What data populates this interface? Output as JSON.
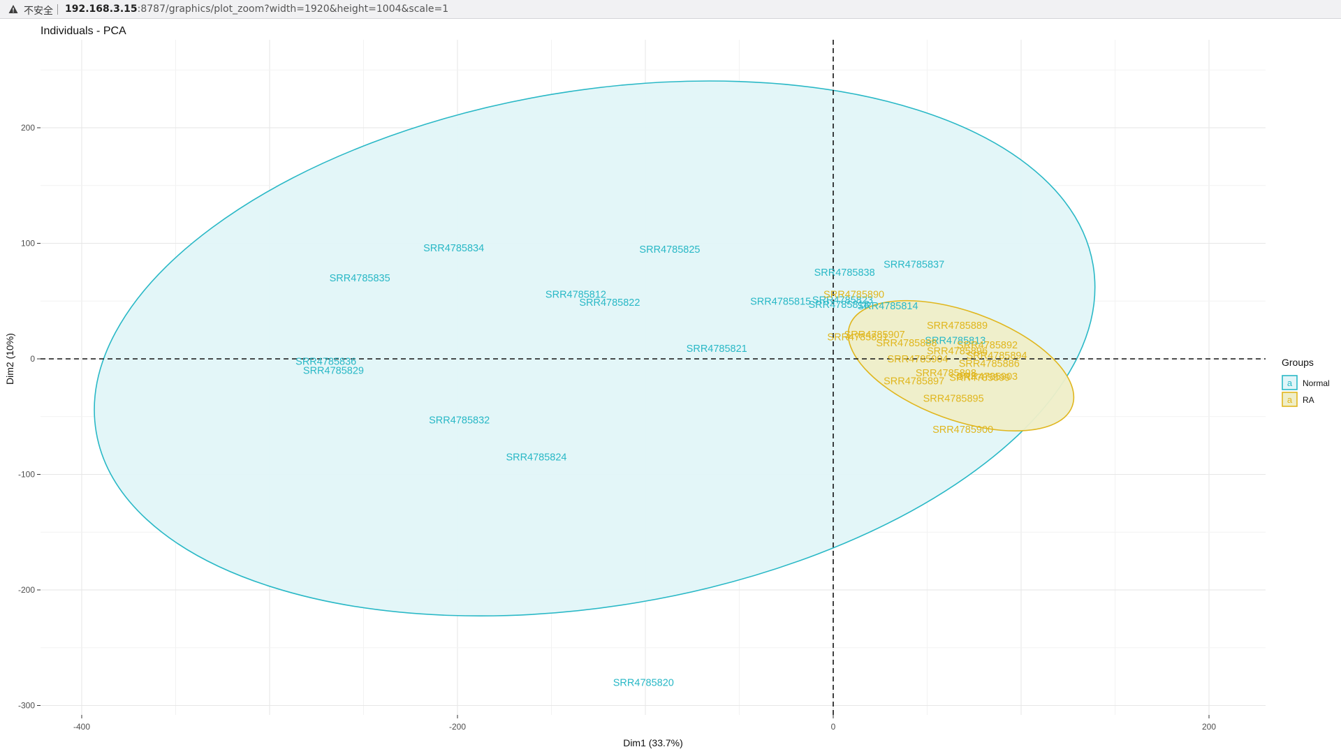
{
  "browser": {
    "security_label": "不安全",
    "url_host": "192.168.3.15",
    "url_rest": ":8787/graphics/plot_zoom?width=1920&height=1004&scale=1"
  },
  "chart_data": {
    "type": "scatter",
    "title": "Individuals - PCA",
    "xlabel": "Dim1 (33.7%)",
    "ylabel": "Dim2 (10%)",
    "xlim": [
      -420,
      230
    ],
    "ylim": [
      -305,
      275
    ],
    "xticks": [
      -400,
      -200,
      0,
      200
    ],
    "yticks": [
      -300,
      -200,
      -100,
      0,
      100,
      200
    ],
    "x_tick_labels": [
      "-400",
      "-200",
      "0",
      "200"
    ],
    "y_tick_labels": [
      "-300",
      "-200",
      "-100",
      "0",
      "100",
      "200"
    ],
    "grid": true,
    "reference_lines": {
      "x": 0,
      "y": 0,
      "style": "dashed"
    },
    "legend": {
      "title": "Groups",
      "position": "right",
      "symbol": "a"
    },
    "series": [
      {
        "name": "Normal",
        "color": "#29b8c6",
        "fill": "#e2f5f8",
        "points": [
          {
            "label": "SRR4785834",
            "x": -202,
            "y": 96
          },
          {
            "label": "SRR4785825",
            "x": -87,
            "y": 95
          },
          {
            "label": "SRR4785835",
            "x": -252,
            "y": 70
          },
          {
            "label": "SRR4785838",
            "x": 6,
            "y": 75
          },
          {
            "label": "SRR4785837",
            "x": 43,
            "y": 82
          },
          {
            "label": "SRR4785812",
            "x": -137,
            "y": 56
          },
          {
            "label": "SRR4785822",
            "x": -119,
            "y": 49
          },
          {
            "label": "SRR4785815",
            "x": -28,
            "y": 50
          },
          {
            "label": "SRR4785823",
            "x": 5,
            "y": 51
          },
          {
            "label": "SRR4785818",
            "x": 3,
            "y": 47
          },
          {
            "label": "SRR4785814",
            "x": 29,
            "y": 46
          },
          {
            "label": "SRR4785821",
            "x": -62,
            "y": 9
          },
          {
            "label": "SRR4785813",
            "x": 65,
            "y": 16
          },
          {
            "label": "SRR4785836",
            "x": -270,
            "y": -2
          },
          {
            "label": "SRR4785829",
            "x": -266,
            "y": -10
          },
          {
            "label": "SRR4785832",
            "x": -199,
            "y": -53
          },
          {
            "label": "SRR4785824",
            "x": -158,
            "y": -85
          },
          {
            "label": "SRR4785820",
            "x": -101,
            "y": -280
          }
        ]
      },
      {
        "name": "RA",
        "color": "#e0b61d",
        "fill": "#efeec8",
        "points": [
          {
            "label": "SRR4785890",
            "x": 11,
            "y": 56
          },
          {
            "label": "SRR4785889",
            "x": 66,
            "y": 29
          },
          {
            "label": "SRR4785907",
            "x": 22,
            "y": 21
          },
          {
            "label": "SRR4785891",
            "x": 13,
            "y": 19
          },
          {
            "label": "SRR4785888",
            "x": 39,
            "y": 14
          },
          {
            "label": "SRR4785892",
            "x": 82,
            "y": 12
          },
          {
            "label": "SRR4785896",
            "x": 66,
            "y": 7
          },
          {
            "label": "SRR4785894",
            "x": 87,
            "y": 3
          },
          {
            "label": "SRR4785904",
            "x": 45,
            "y": 0
          },
          {
            "label": "SRR4785886",
            "x": 83,
            "y": -4
          },
          {
            "label": "SRR4785898",
            "x": 60,
            "y": -12
          },
          {
            "label": "SRR4785903",
            "x": 82,
            "y": -15
          },
          {
            "label": "SRR4785899",
            "x": 78,
            "y": -16
          },
          {
            "label": "SRR4785897",
            "x": 43,
            "y": -19
          },
          {
            "label": "SRR4785895",
            "x": 64,
            "y": -34
          },
          {
            "label": "SRR4785900",
            "x": 69,
            "y": -61
          }
        ]
      }
    ],
    "ellipses": [
      {
        "group": "Normal",
        "cx": -127,
        "cy": 9,
        "rx": 269,
        "ry": 223,
        "angle_deg": 9.5
      },
      {
        "group": "RA",
        "cx": 68,
        "cy": -6,
        "rx": 63,
        "ry": 47,
        "angle_deg": -20
      }
    ]
  }
}
